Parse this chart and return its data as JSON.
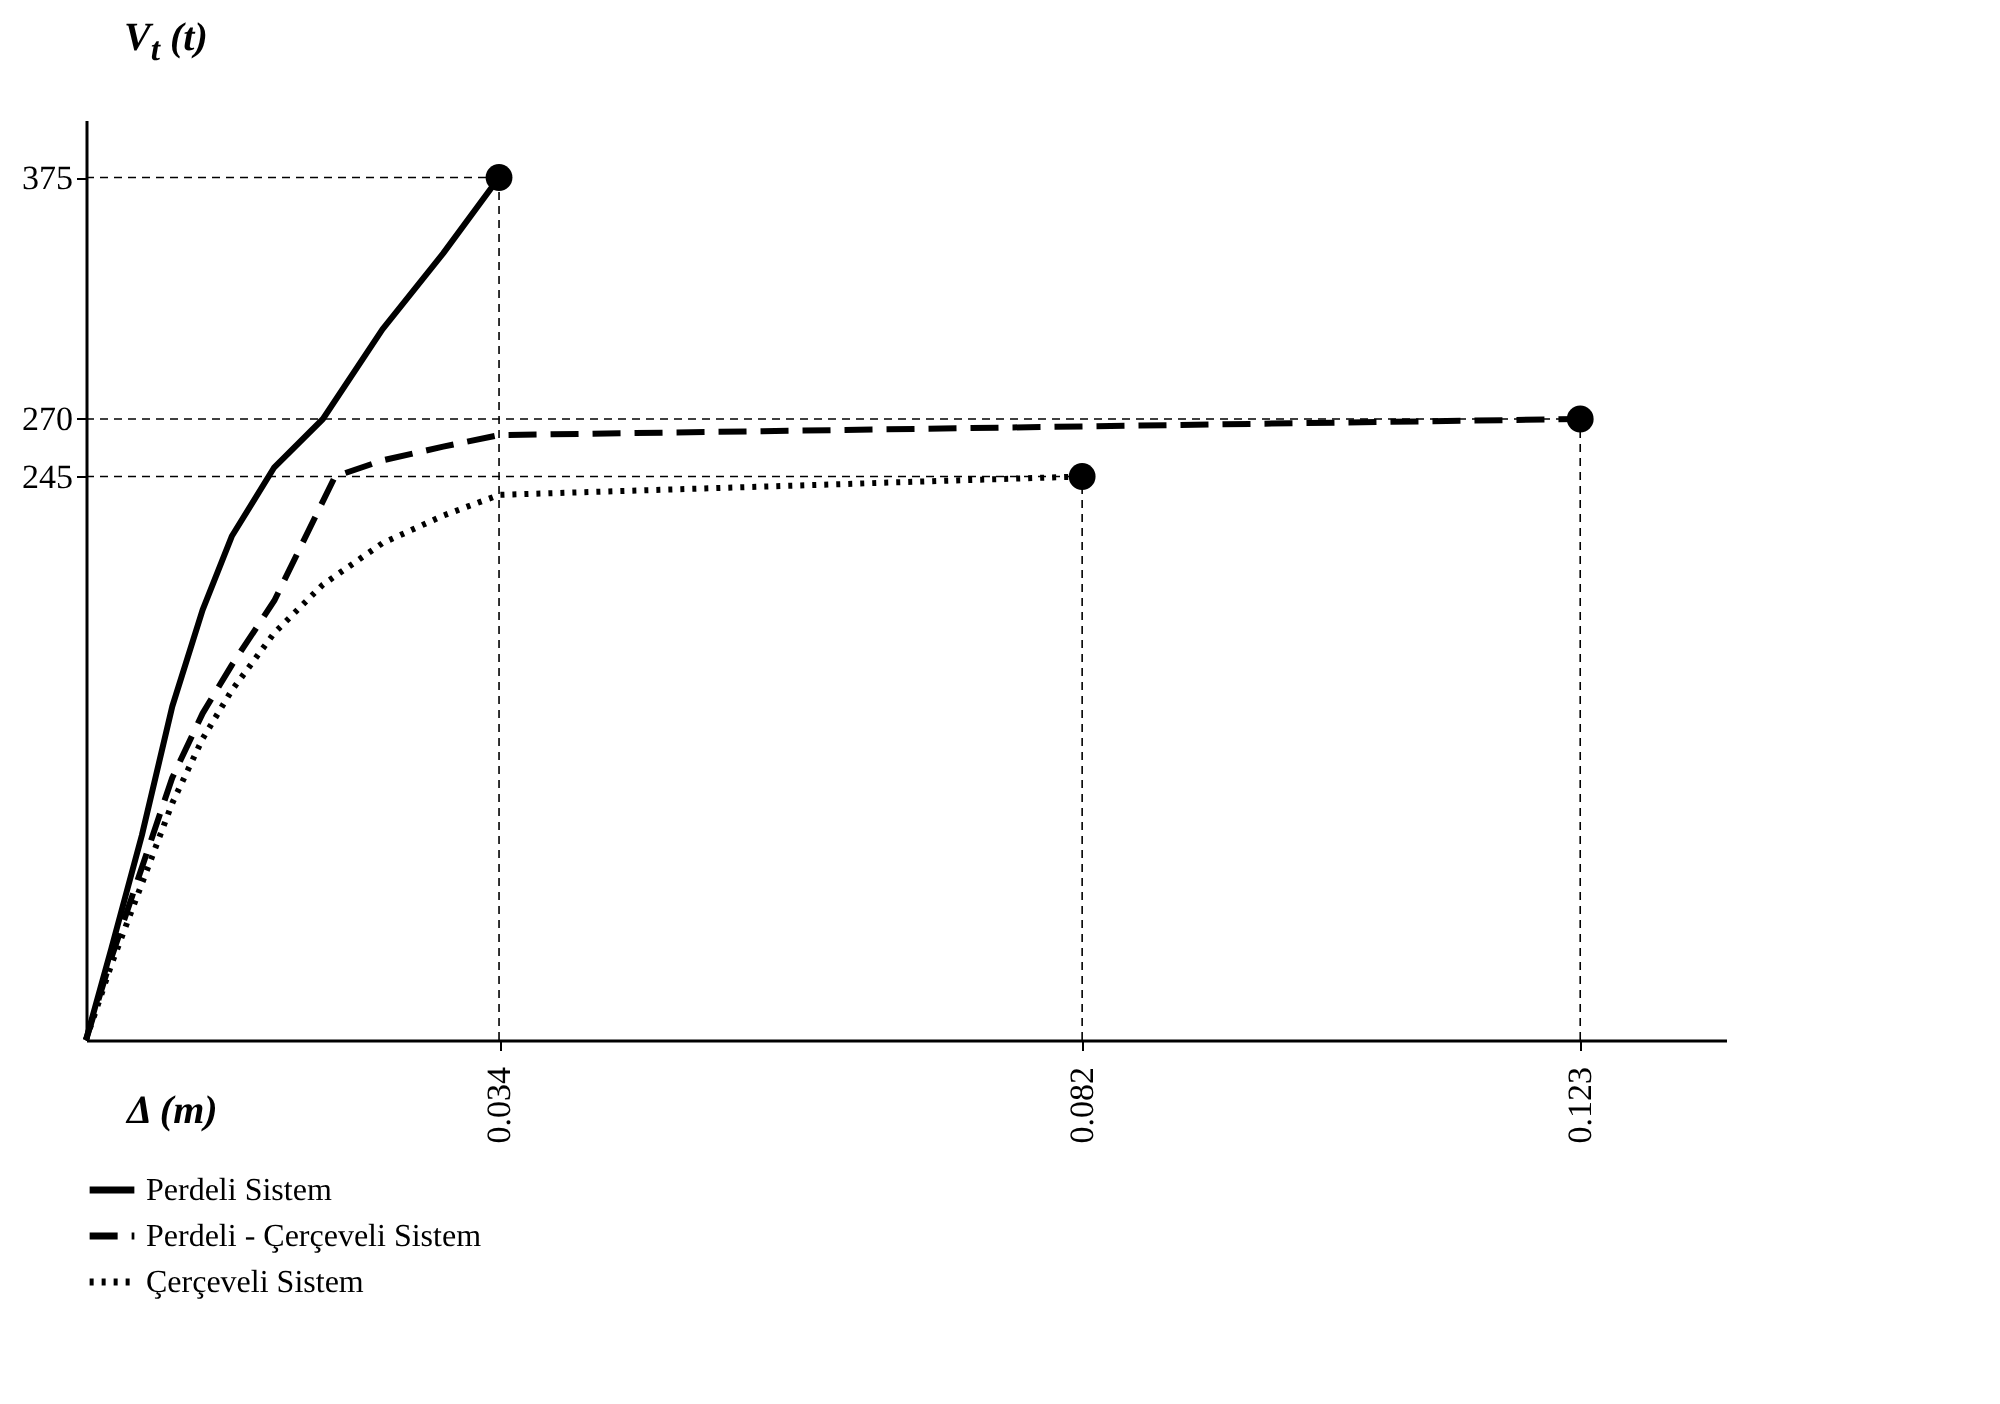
{
  "chart_data": {
    "type": "line",
    "xlabel": "Δ (m)",
    "ylabel": "V$_{t}$ (t)",
    "xlim": [
      0,
      0.135
    ],
    "ylim": [
      0,
      400
    ],
    "xticks": [
      0.034,
      0.082,
      0.123
    ],
    "yticks": [
      245,
      270,
      375
    ],
    "grid": false,
    "legend": "bottom left",
    "ref_lines": [
      {
        "axis": "x",
        "value": 0.034,
        "line_style": "dashed"
      },
      {
        "axis": "x",
        "value": 0.082,
        "line_style": "dashed"
      },
      {
        "axis": "x",
        "value": 0.123,
        "line_style": "dashed"
      },
      {
        "axis": "y",
        "value": 375,
        "line_style": "dashed"
      },
      {
        "axis": "y",
        "value": 270,
        "line_style": "dashed"
      },
      {
        "axis": "y",
        "value": 245,
        "line_style": "dashed"
      }
    ],
    "series": [
      {
        "name": "Perdeli Sistem",
        "color": "#000000",
        "line_style": "solid",
        "x": [
          0,
          0.0021,
          0.0046,
          0.0071,
          0.0096,
          0.012,
          0.0155,
          0.0195,
          0.0244,
          0.0294,
          0.034
        ],
        "values": [
          0,
          40,
          89,
          145,
          187,
          219,
          249,
          270,
          309,
          342,
          375
        ]
      },
      {
        "name": "Perdeli - Çerçeveli Sistem",
        "color": "#000000",
        "line_style": "dashed",
        "x": [
          0,
          0.0021,
          0.0046,
          0.0071,
          0.0096,
          0.012,
          0.0155,
          0.0205,
          0.0244,
          0.0294,
          0.034,
          0.123
        ],
        "values": [
          0,
          36,
          75,
          114,
          142,
          163,
          191,
          245,
          252,
          258,
          263,
          270
        ]
      },
      {
        "name": "Çerçeveli Sistem",
        "color": "#000000",
        "line_style": "dotted",
        "x": [
          0,
          0.0021,
          0.0046,
          0.0071,
          0.0096,
          0.012,
          0.0155,
          0.0195,
          0.0244,
          0.0294,
          0.034,
          0.082
        ],
        "values": [
          0,
          33,
          68,
          103,
          131,
          152,
          177,
          198,
          216,
          228,
          237,
          245
        ]
      }
    ]
  }
}
